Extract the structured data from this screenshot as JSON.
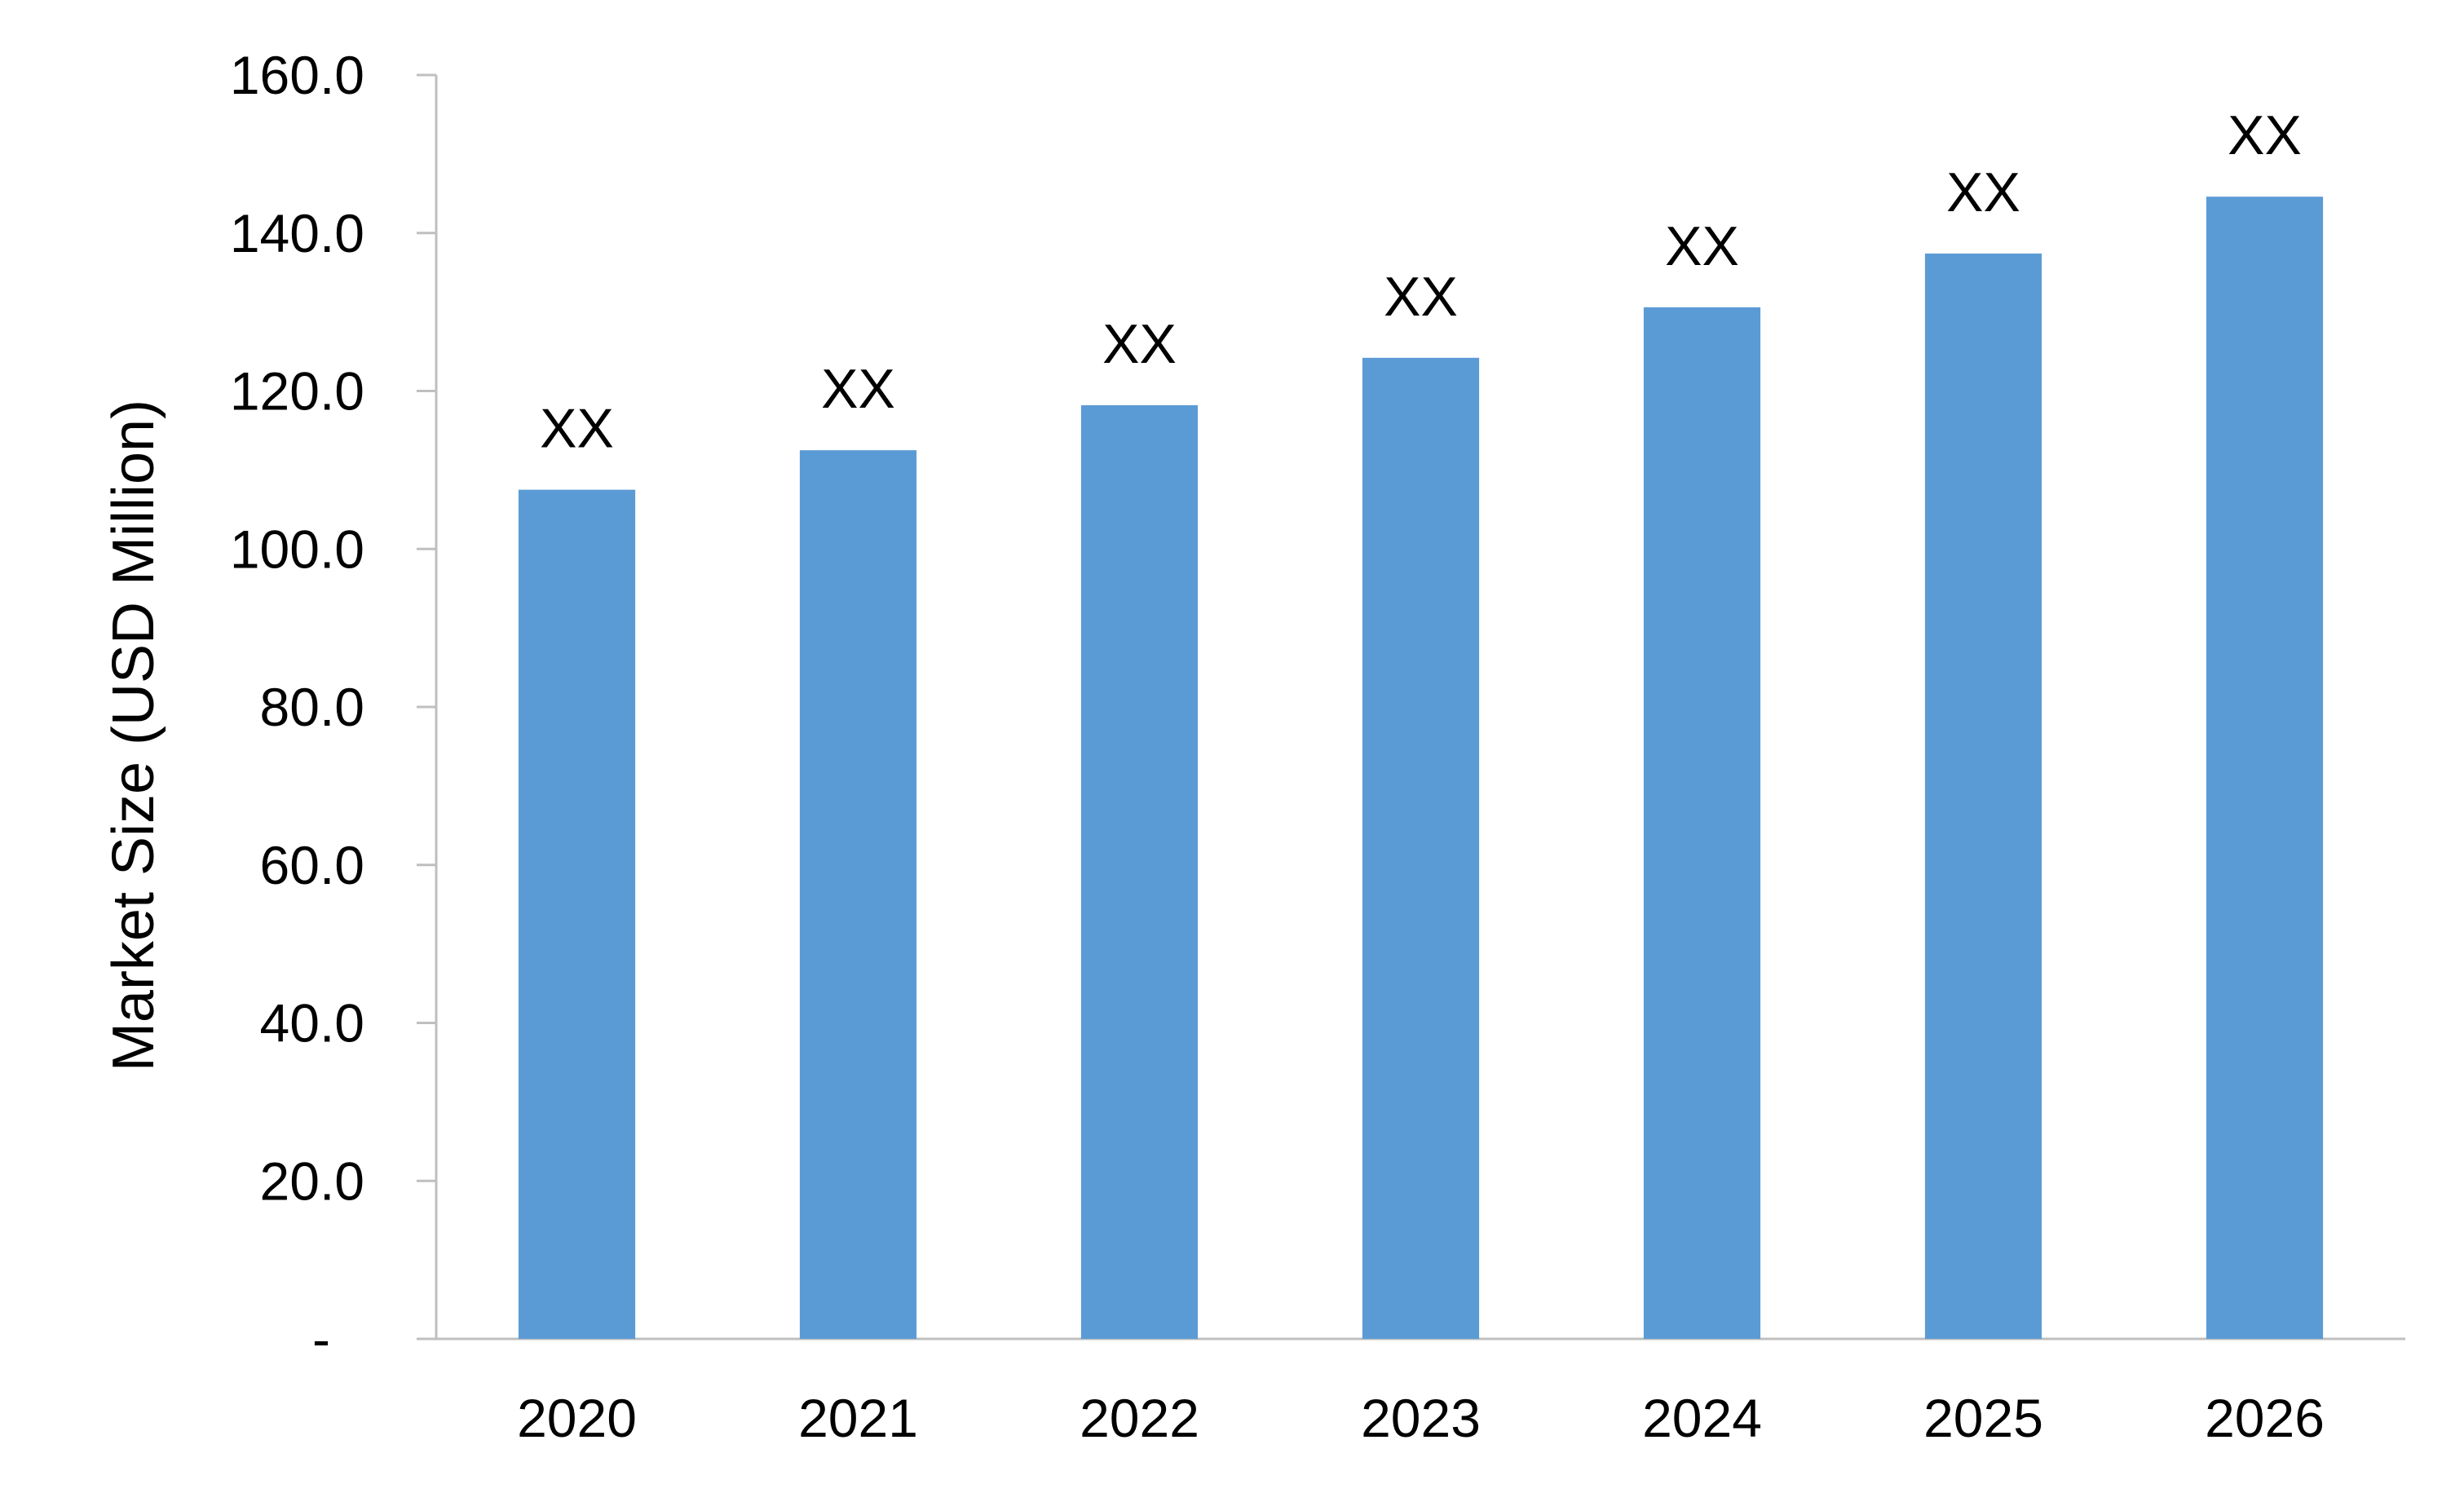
{
  "chart_data": {
    "type": "bar",
    "title": "",
    "xlabel": "",
    "ylabel": "Market Size (USD Million)",
    "categories": [
      "2020",
      "2021",
      "2022",
      "2023",
      "2024",
      "2025",
      "2026"
    ],
    "values": [
      107.5,
      112.5,
      118.2,
      124.2,
      130.6,
      137.4,
      144.6
    ],
    "data_labels": [
      "XX",
      "XX",
      "XX",
      "XX",
      "XX",
      "XX",
      "XX"
    ],
    "ylim": [
      0,
      160
    ],
    "yticks": [
      0,
      20,
      40,
      60,
      80,
      100,
      120,
      140,
      160
    ],
    "ytick_labels": [
      "-",
      "20.0",
      "40.0",
      "60.0",
      "80.0",
      "100.0",
      "120.0",
      "140.0",
      "160.0"
    ],
    "grid": false,
    "legend": "none",
    "bar_color": "#5B9BD5",
    "axis_color": "#BFBFBF"
  }
}
